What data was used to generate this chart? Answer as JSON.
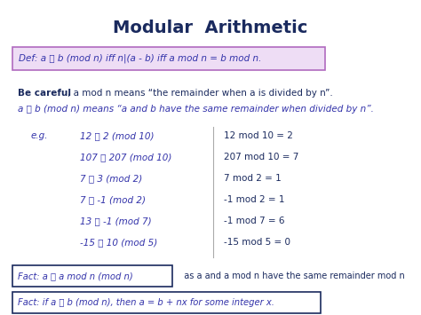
{
  "title": "Modular  Arithmetic",
  "title_color": "#1a2a5e",
  "title_fontsize": 14,
  "bg_color": "#ffffff",
  "def_text": "Def: a Ⓢ b (mod n) iff n|(a - b) iff a mod n = b mod n.",
  "def_box_facecolor": "#eeddf5",
  "def_box_edgecolor": "#b06abf",
  "careful_bold": "Be careful",
  "careful_rest": ", a mod n means “the remainder when a is divided by n”.",
  "careful_line2": "a Ⓢ b (mod n) means “a and b have the same remainder when divided by n”.",
  "eg_label": "e.g.",
  "examples_left": [
    "12 Ⓢ 2 (mod 10)",
    "107 Ⓢ 207 (mod 10)",
    "7 Ⓢ 3 (mod 2)",
    "7 Ⓢ -1 (mod 2)",
    "13 Ⓢ -1 (mod 7)",
    "-15 Ⓢ 10 (mod 5)"
  ],
  "examples_right": [
    "12 mod 10 = 2",
    "207 mod 10 = 7",
    "7 mod 2 = 1",
    "-1 mod 2 = 1",
    "-1 mod 7 = 6",
    "-15 mod 5 = 0"
  ],
  "fact1_boxed": "Fact: a Ⓢ a mod n (mod n)",
  "fact1_rest": "  as a and a mod n have the same remainder mod n",
  "fact2_boxed": "Fact: if a Ⓢ b (mod n), then a = b + nx for some integer x.",
  "navy": "#1a2a5e",
  "blue": "#3333aa",
  "fact_edge": "#1a2a5e"
}
